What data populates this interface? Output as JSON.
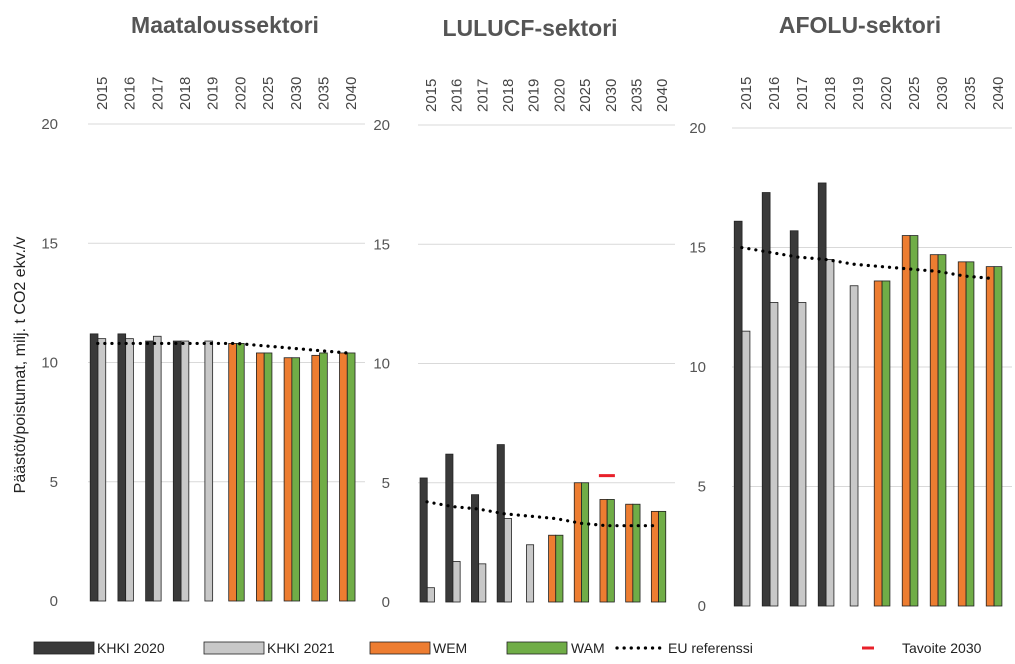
{
  "y_axis_label": "Päästöt/poistumat, milj. t CO2 ekv./v",
  "colors": {
    "KHKI 2020": "#3a3a3a",
    "KHKI 2021": "#c8c8c8",
    "WEM": "#ed7d31",
    "WAM": "#70ad47",
    "EU referenssi": "#000000",
    "Tavoite 2030": "#e8202a"
  },
  "legend": [
    {
      "label": "KHKI 2020",
      "kind": "box",
      "color": "#3a3a3a"
    },
    {
      "label": "KHKI 2021",
      "kind": "box",
      "color": "#c8c8c8"
    },
    {
      "label": "WEM",
      "kind": "box",
      "color": "#ed7d31"
    },
    {
      "label": "WAM",
      "kind": "box",
      "color": "#70ad47"
    },
    {
      "label": "EU referenssi",
      "kind": "dots",
      "color": "#000000"
    },
    {
      "label": "Tavoite 2030",
      "kind": "dash",
      "color": "#e8202a"
    }
  ],
  "chart_data": [
    {
      "type": "bar",
      "title": "Maataloussektori",
      "categories": [
        "2015",
        "2016",
        "2017",
        "2018",
        "2019",
        "2020",
        "2025",
        "2030",
        "2035",
        "2040"
      ],
      "ylim": [
        0,
        20
      ],
      "yticks": [
        0,
        5,
        10,
        15,
        20
      ],
      "grid": true,
      "series": [
        {
          "name": "KHKI 2020",
          "values": [
            11.2,
            11.2,
            10.9,
            10.9,
            null,
            null,
            null,
            null,
            null,
            null
          ]
        },
        {
          "name": "KHKI 2021",
          "values": [
            11.0,
            11.0,
            11.1,
            10.9,
            10.9,
            null,
            null,
            null,
            null,
            null
          ]
        },
        {
          "name": "WEM",
          "values": [
            null,
            null,
            null,
            null,
            null,
            10.8,
            10.4,
            10.2,
            10.3,
            10.4
          ]
        },
        {
          "name": "WAM",
          "values": [
            null,
            null,
            null,
            null,
            null,
            10.8,
            10.4,
            10.2,
            10.4,
            10.4
          ]
        },
        {
          "name": "EU referenssi",
          "kind": "dotted-line",
          "values": [
            10.8,
            10.8,
            10.8,
            10.8,
            10.8,
            10.8,
            10.7,
            10.6,
            10.5,
            10.4
          ]
        }
      ]
    },
    {
      "type": "bar",
      "title": "LULUCF-sektori",
      "categories": [
        "2015",
        "2016",
        "2017",
        "2018",
        "2019",
        "2020",
        "2025",
        "2030",
        "2035",
        "2040"
      ],
      "ylim": [
        0,
        20
      ],
      "yticks": [
        0,
        5,
        10,
        15,
        20
      ],
      "grid": true,
      "series": [
        {
          "name": "KHKI 2020",
          "values": [
            5.2,
            6.2,
            4.5,
            6.6,
            null,
            null,
            null,
            null,
            null,
            null
          ]
        },
        {
          "name": "KHKI 2021",
          "values": [
            0.6,
            1.7,
            1.6,
            3.5,
            2.4,
            null,
            null,
            null,
            null,
            null
          ]
        },
        {
          "name": "WEM",
          "values": [
            null,
            null,
            null,
            null,
            null,
            2.8,
            5.0,
            4.3,
            4.1,
            3.8
          ]
        },
        {
          "name": "WAM",
          "values": [
            null,
            null,
            null,
            null,
            null,
            2.8,
            5.0,
            4.3,
            4.1,
            3.8
          ]
        },
        {
          "name": "EU referenssi",
          "kind": "dotted-line",
          "values": [
            4.2,
            4.0,
            3.9,
            3.7,
            3.6,
            3.5,
            3.3,
            3.2,
            3.2,
            3.2
          ]
        },
        {
          "name": "Tavoite 2030",
          "kind": "target-marker",
          "category": "2030",
          "value": 5.3
        }
      ]
    },
    {
      "type": "bar",
      "title": "AFOLU-sektori",
      "categories": [
        "2015",
        "2016",
        "2017",
        "2018",
        "2019",
        "2020",
        "2025",
        "2030",
        "2035",
        "2040"
      ],
      "ylim": [
        0,
        20
      ],
      "yticks": [
        0,
        5,
        10,
        15,
        20
      ],
      "grid": true,
      "series": [
        {
          "name": "KHKI 2020",
          "values": [
            16.1,
            17.3,
            15.7,
            17.7,
            null,
            null,
            null,
            null,
            null,
            null
          ]
        },
        {
          "name": "KHKI 2021",
          "values": [
            11.5,
            12.7,
            12.7,
            14.5,
            13.4,
            null,
            null,
            null,
            null,
            null
          ]
        },
        {
          "name": "WEM",
          "values": [
            null,
            null,
            null,
            null,
            null,
            13.6,
            15.5,
            14.7,
            14.4,
            14.2
          ]
        },
        {
          "name": "WAM",
          "values": [
            null,
            null,
            null,
            null,
            null,
            13.6,
            15.5,
            14.7,
            14.4,
            14.2
          ]
        },
        {
          "name": "EU referenssi",
          "kind": "dotted-line",
          "values": [
            15.0,
            14.8,
            14.6,
            14.5,
            14.3,
            14.2,
            14.1,
            14.0,
            13.8,
            13.7
          ]
        }
      ]
    }
  ]
}
